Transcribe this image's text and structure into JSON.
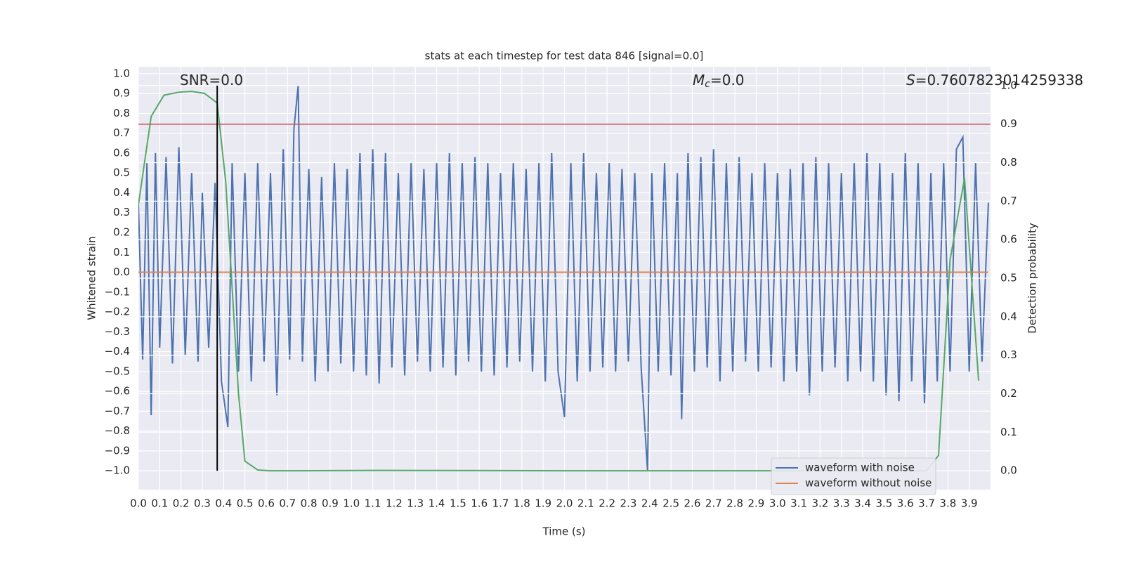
{
  "chart_data": {
    "type": "line",
    "title": "stats at each timestep for test data 846 [signal=0.0]",
    "xlabel": "Time (s)",
    "ylabel": "Whitened strain",
    "y2label": "Detection probability",
    "annotations": [
      {
        "text": "SNR=0.0"
      },
      {
        "symbol": "M",
        "subscript": "c",
        "text": "=0.0"
      },
      {
        "symbol": "S",
        "text": "=0.7607823014259338"
      }
    ],
    "xlim": [
      0,
      4.0
    ],
    "ylim": [
      -1.095,
      1.035
    ],
    "y2lim": [
      -0.049,
      1.049
    ],
    "xticks": [
      {
        "value": 0,
        "label": "0.0"
      },
      {
        "value": 0.1,
        "label": "0.1"
      },
      {
        "value": 0.2,
        "label": "0.2"
      },
      {
        "value": 0.3,
        "label": "0.3"
      },
      {
        "value": 0.4,
        "label": "0.4"
      },
      {
        "value": 0.5,
        "label": "0.5"
      },
      {
        "value": 0.6,
        "label": "0.6"
      },
      {
        "value": 0.7,
        "label": "0.7"
      },
      {
        "value": 0.8,
        "label": "0.8"
      },
      {
        "value": 0.9,
        "label": "0.9"
      },
      {
        "value": 1,
        "label": "1.0"
      },
      {
        "value": 1.1,
        "label": "1.1"
      },
      {
        "value": 1.2,
        "label": "1.2"
      },
      {
        "value": 1.3,
        "label": "1.3"
      },
      {
        "value": 1.4,
        "label": "1.4"
      },
      {
        "value": 1.5,
        "label": "1.5"
      },
      {
        "value": 1.6,
        "label": "1.6"
      },
      {
        "value": 1.7,
        "label": "1.7"
      },
      {
        "value": 1.8,
        "label": "1.8"
      },
      {
        "value": 1.9,
        "label": "1.9"
      },
      {
        "value": 2,
        "label": "2.0"
      },
      {
        "value": 2.1,
        "label": "2.1"
      },
      {
        "value": 2.2,
        "label": "2.2"
      },
      {
        "value": 2.3,
        "label": "2.3"
      },
      {
        "value": 2.4,
        "label": "2.4"
      },
      {
        "value": 2.5,
        "label": "2.5"
      },
      {
        "value": 2.6,
        "label": "2.6"
      },
      {
        "value": 2.7,
        "label": "2.7"
      },
      {
        "value": 2.8,
        "label": "2.8"
      },
      {
        "value": 2.9,
        "label": "2.9"
      },
      {
        "value": 3,
        "label": "3.0"
      },
      {
        "value": 3.1,
        "label": "3.1"
      },
      {
        "value": 3.2,
        "label": "3.2"
      },
      {
        "value": 3.3,
        "label": "3.3"
      },
      {
        "value": 3.4,
        "label": "3.4"
      },
      {
        "value": 3.5,
        "label": "3.5"
      },
      {
        "value": 3.6,
        "label": "3.6"
      },
      {
        "value": 3.7,
        "label": "3.7"
      },
      {
        "value": 3.8,
        "label": "3.8"
      },
      {
        "value": 3.9,
        "label": "3.9"
      }
    ],
    "yticks": [
      {
        "value": -1,
        "label": "−1.0"
      },
      {
        "value": -0.9,
        "label": "−0.9"
      },
      {
        "value": -0.8,
        "label": "−0.8"
      },
      {
        "value": -0.7,
        "label": "−0.7"
      },
      {
        "value": -0.6,
        "label": "−0.6"
      },
      {
        "value": -0.5,
        "label": "−0.5"
      },
      {
        "value": -0.4,
        "label": "−0.4"
      },
      {
        "value": -0.3,
        "label": "−0.3"
      },
      {
        "value": -0.2,
        "label": "−0.2"
      },
      {
        "value": -0.1,
        "label": "−0.1"
      },
      {
        "value": 0,
        "label": "0.0"
      },
      {
        "value": 0.1,
        "label": "0.1"
      },
      {
        "value": 0.2,
        "label": "0.2"
      },
      {
        "value": 0.3,
        "label": "0.3"
      },
      {
        "value": 0.4,
        "label": "0.4"
      },
      {
        "value": 0.5,
        "label": "0.5"
      },
      {
        "value": 0.6,
        "label": "0.6"
      },
      {
        "value": 0.7,
        "label": "0.7"
      },
      {
        "value": 0.8,
        "label": "0.8"
      },
      {
        "value": 0.9,
        "label": "0.9"
      },
      {
        "value": 1,
        "label": "1.0"
      }
    ],
    "y2ticks": [
      {
        "value": 0,
        "label": "0.0"
      },
      {
        "value": 0.1,
        "label": "0.1"
      },
      {
        "value": 0.2,
        "label": "0.2"
      },
      {
        "value": 0.3,
        "label": "0.3"
      },
      {
        "value": 0.4,
        "label": "0.4"
      },
      {
        "value": 0.5,
        "label": "0.5"
      },
      {
        "value": 0.6,
        "label": "0.6"
      },
      {
        "value": 0.7,
        "label": "0.7"
      },
      {
        "value": 0.8,
        "label": "0.8"
      },
      {
        "value": 0.9,
        "label": "0.9"
      },
      {
        "value": 1,
        "label": "1.0"
      }
    ],
    "grid": true,
    "legend": "lower right",
    "series": [
      {
        "name": "waveform with noise",
        "color": "#4c72b0",
        "x": [
          0.0,
          0.02,
          0.04,
          0.06,
          0.08,
          0.1,
          0.13,
          0.16,
          0.19,
          0.22,
          0.25,
          0.28,
          0.3,
          0.33,
          0.36,
          0.39,
          0.42,
          0.44,
          0.47,
          0.5,
          0.53,
          0.56,
          0.59,
          0.62,
          0.65,
          0.68,
          0.71,
          0.73,
          0.75,
          0.77,
          0.8,
          0.83,
          0.86,
          0.89,
          0.92,
          0.95,
          0.98,
          1.01,
          1.04,
          1.07,
          1.1,
          1.13,
          1.16,
          1.19,
          1.22,
          1.25,
          1.28,
          1.31,
          1.34,
          1.37,
          1.4,
          1.43,
          1.46,
          1.49,
          1.52,
          1.55,
          1.58,
          1.61,
          1.64,
          1.67,
          1.7,
          1.73,
          1.76,
          1.79,
          1.82,
          1.85,
          1.88,
          1.91,
          1.94,
          1.97,
          2.0,
          2.03,
          2.06,
          2.09,
          2.12,
          2.15,
          2.18,
          2.21,
          2.24,
          2.27,
          2.3,
          2.33,
          2.36,
          2.39,
          2.41,
          2.44,
          2.47,
          2.5,
          2.53,
          2.55,
          2.58,
          2.61,
          2.64,
          2.67,
          2.7,
          2.73,
          2.76,
          2.79,
          2.82,
          2.85,
          2.88,
          2.91,
          2.94,
          2.97,
          3.0,
          3.03,
          3.06,
          3.09,
          3.12,
          3.15,
          3.18,
          3.21,
          3.24,
          3.27,
          3.3,
          3.33,
          3.36,
          3.39,
          3.42,
          3.45,
          3.48,
          3.51,
          3.54,
          3.57,
          3.6,
          3.63,
          3.66,
          3.69,
          3.72,
          3.75,
          3.78,
          3.81,
          3.84,
          3.87,
          3.9,
          3.93,
          3.96,
          3.99
        ],
        "values": [
          0.35,
          -0.44,
          0.55,
          -0.72,
          0.6,
          -0.38,
          0.58,
          -0.46,
          0.63,
          -0.42,
          0.5,
          -0.45,
          0.4,
          -0.38,
          0.45,
          -0.55,
          -0.78,
          0.55,
          -0.5,
          0.5,
          -0.55,
          0.55,
          -0.45,
          0.5,
          -0.62,
          0.62,
          -0.44,
          0.72,
          0.94,
          -0.45,
          0.52,
          -0.55,
          0.48,
          -0.5,
          0.55,
          -0.46,
          0.52,
          -0.5,
          0.6,
          -0.52,
          0.62,
          -0.56,
          0.6,
          -0.48,
          0.5,
          -0.52,
          0.55,
          -0.45,
          0.52,
          -0.5,
          0.55,
          -0.48,
          0.6,
          -0.52,
          0.55,
          -0.45,
          0.58,
          -0.5,
          0.55,
          -0.52,
          0.5,
          -0.48,
          0.55,
          -0.45,
          0.52,
          -0.5,
          0.55,
          -0.55,
          0.6,
          -0.5,
          -0.73,
          0.55,
          -0.55,
          0.6,
          -0.5,
          0.5,
          -0.48,
          0.55,
          -0.5,
          0.52,
          -0.45,
          0.5,
          -0.48,
          -1.0,
          0.5,
          -0.5,
          0.55,
          -0.52,
          0.5,
          -0.74,
          0.6,
          -0.5,
          0.58,
          -0.48,
          0.62,
          -0.55,
          0.55,
          -0.5,
          0.58,
          -0.45,
          0.5,
          -0.5,
          0.55,
          -0.48,
          0.5,
          -0.55,
          0.52,
          -0.5,
          0.55,
          -0.62,
          0.58,
          -0.5,
          0.55,
          -0.48,
          0.5,
          -0.55,
          0.55,
          -0.5,
          0.6,
          -0.55,
          0.55,
          -0.62,
          0.5,
          -0.65,
          0.6,
          -0.55,
          0.55,
          -0.66,
          0.5,
          -0.55,
          0.55,
          -0.5,
          0.62,
          0.68,
          -0.5,
          0.55,
          -0.45,
          0.35
        ]
      },
      {
        "name": "waveform without noise",
        "color": "#dd8452",
        "x": [
          0.0,
          3.99
        ],
        "values": [
          0.0,
          0.0
        ]
      },
      {
        "color": "#55a868",
        "axis": "y2",
        "x": [
          0.0,
          0.06,
          0.12,
          0.19,
          0.25,
          0.31,
          0.37,
          0.41,
          0.47,
          0.5,
          0.56,
          0.62,
          0.75,
          1.1,
          2.0,
          3.0,
          3.7,
          3.756,
          3.81,
          3.878,
          3.944
        ],
        "values": [
          0.69,
          0.92,
          0.975,
          0.983,
          0.985,
          0.98,
          0.955,
          0.75,
          0.2,
          0.025,
          0.002,
          0.0,
          0.0,
          0.001,
          0.0,
          0.0,
          0.0,
          0.04,
          0.547,
          0.76,
          0.234
        ]
      }
    ],
    "threshold": {
      "value": 0.9,
      "axis": "y2",
      "color": "#c44e52"
    },
    "vline": {
      "x": 0.37,
      "ymin": -1.0,
      "ymax": 0.94,
      "color": "#000000"
    }
  }
}
